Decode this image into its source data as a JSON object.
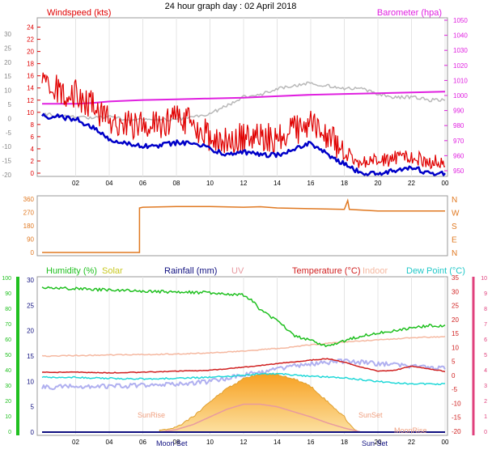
{
  "title": "24 hour graph day : 02 April 2018",
  "colors": {
    "wind": "#e00000",
    "gust_avg": "#0000c8",
    "barometer": "#e020e0",
    "grey_trace": "#b8b8b8",
    "direction": "#e07820",
    "humidity": "#20c020",
    "indoor": "#f5b8a0",
    "temperature": "#d02020",
    "dewpoint": "#20d8d8",
    "rainfall": "#101080",
    "uv": "#e89aa0",
    "solar": "#f5b040",
    "solar_edge": "#e0a030",
    "lavender": "#b0b0f0",
    "green_axis": "#20c020",
    "pink_axis": "#e0407c",
    "panel_border": "#9a9a9a",
    "grid": "#e4e4e4"
  },
  "chart_data": [
    {
      "type": "line",
      "panel": "wind-barometer",
      "left_axis_label": "Windspeed (kts)",
      "right_axis_label": "Barometer (hpa)",
      "x_ticks": [
        "02",
        "04",
        "06",
        "08",
        "10",
        "12",
        "14",
        "16",
        "18",
        "20",
        "22",
        "00"
      ],
      "outer_left_ticks": [
        "30",
        "25",
        "20",
        "15",
        "10",
        "5",
        "0",
        "-5",
        "-10",
        "-15",
        "-20"
      ],
      "left_ticks": [
        "24",
        "22",
        "20",
        "18",
        "16",
        "14",
        "12",
        "10",
        "8",
        "6",
        "4",
        "2",
        "0"
      ],
      "right_ticks": [
        "1050",
        "1040",
        "1030",
        "1020",
        "1010",
        "1000",
        "990",
        "980",
        "970",
        "960",
        "950"
      ],
      "ylim": [
        0,
        25
      ],
      "series": [
        {
          "values": [
            [
              0,
              14
            ],
            [
              0.5,
              12
            ],
            [
              1,
              13
            ],
            [
              1.5,
              11
            ],
            [
              2,
              12
            ],
            [
              2.5,
              11
            ],
            [
              3,
              10
            ],
            [
              3.5,
              9
            ],
            [
              4,
              8
            ],
            [
              4.5,
              7.5
            ],
            [
              5,
              7
            ],
            [
              6,
              7
            ],
            [
              7,
              7
            ],
            [
              8,
              8
            ],
            [
              9,
              7
            ],
            [
              10,
              5
            ],
            [
              11,
              4
            ],
            [
              12,
              5
            ],
            [
              13,
              5
            ],
            [
              14,
              4.5
            ],
            [
              15,
              6
            ],
            [
              16,
              7
            ],
            [
              17,
              5
            ],
            [
              18,
              3
            ],
            [
              19,
              1
            ],
            [
              20,
              1.5
            ],
            [
              21,
              2
            ],
            [
              22,
              2
            ],
            [
              23,
              1.5
            ],
            [
              24,
              1
            ]
          ]
        },
        {
          "values": [
            [
              0,
              9.5
            ],
            [
              0.5,
              9
            ],
            [
              1,
              9.5
            ],
            [
              1.5,
              9
            ],
            [
              2,
              9
            ],
            [
              2.5,
              8
            ],
            [
              3,
              7.5
            ],
            [
              3.5,
              6.5
            ],
            [
              4,
              5.5
            ],
            [
              4.5,
              5
            ],
            [
              5,
              5
            ],
            [
              6,
              4.5
            ],
            [
              7,
              4.5
            ],
            [
              8,
              5
            ],
            [
              9,
              5
            ],
            [
              10,
              4
            ],
            [
              11,
              3
            ],
            [
              12,
              3.5
            ],
            [
              13,
              3
            ],
            [
              14,
              3
            ],
            [
              15,
              4
            ],
            [
              16,
              5
            ],
            [
              17,
              3
            ],
            [
              18,
              1.5
            ],
            [
              19,
              0
            ],
            [
              20,
              0
            ],
            [
              21,
              0.5
            ],
            [
              22,
              1
            ],
            [
              23,
              0
            ],
            [
              24,
              0
            ]
          ]
        },
        {
          "values": [
            [
              0,
              994.5
            ],
            [
              2,
              994.5
            ],
            [
              3,
              995
            ],
            [
              4,
              996
            ],
            [
              6,
              997
            ],
            [
              8,
              997.5
            ],
            [
              10,
              998
            ],
            [
              12,
              998.5
            ],
            [
              14,
              999.5
            ],
            [
              16,
              1000.5
            ],
            [
              18,
              1001
            ],
            [
              20,
              1001.5
            ],
            [
              22,
              1002
            ],
            [
              24,
              1002.5
            ]
          ]
        },
        {
          "values": [
            [
              0,
              -1
            ],
            [
              1,
              -1.5
            ],
            [
              2,
              -2
            ],
            [
              3,
              -2.5
            ],
            [
              4,
              -2
            ],
            [
              5,
              -3
            ],
            [
              6,
              -3
            ],
            [
              7,
              -3
            ],
            [
              8,
              -3
            ],
            [
              9,
              -2
            ],
            [
              10,
              -1
            ],
            [
              11,
              2
            ],
            [
              12,
              5
            ],
            [
              13,
              6
            ],
            [
              14,
              8
            ],
            [
              15,
              9
            ],
            [
              16,
              10
            ],
            [
              17,
              9
            ],
            [
              18,
              8
            ],
            [
              19,
              8
            ],
            [
              20,
              6
            ],
            [
              21,
              5
            ],
            [
              22,
              5
            ],
            [
              23,
              4
            ],
            [
              24,
              4
            ]
          ]
        }
      ]
    },
    {
      "type": "line",
      "panel": "direction",
      "left_ticks": [
        "360",
        "270",
        "180",
        "90",
        "0"
      ],
      "right_ticks": [
        "N",
        "W",
        "S",
        "E",
        "N"
      ],
      "ylim": [
        0,
        360
      ],
      "series": [
        {
          "values": [
            [
              0,
              0
            ],
            [
              5.8,
              0
            ],
            [
              5.8,
              300
            ],
            [
              6,
              305
            ],
            [
              8,
              310
            ],
            [
              10,
              310
            ],
            [
              12,
              305
            ],
            [
              13,
              308
            ],
            [
              14,
              300
            ],
            [
              16,
              295
            ],
            [
              18,
              290
            ],
            [
              18.2,
              350
            ],
            [
              18.3,
              290
            ],
            [
              20,
              280
            ],
            [
              24,
              280
            ]
          ]
        }
      ]
    },
    {
      "type": "line",
      "panel": "climate",
      "legend": [
        "Humidity (%)",
        "Solar",
        "Rainfall (mm)",
        "UV",
        "Temperature (°C)",
        "Indoor",
        "Dew Point (°C)"
      ],
      "x_ticks": [
        "02",
        "04",
        "06",
        "08",
        "10",
        "12",
        "14",
        "16",
        "18",
        "20",
        "22",
        "00"
      ],
      "outer_left_ticks": [
        "100",
        "90",
        "80",
        "70",
        "60",
        "50",
        "40",
        "30",
        "20",
        "10",
        "0"
      ],
      "left_ticks": [
        "30",
        "25",
        "20",
        "15",
        "10",
        "5",
        "0"
      ],
      "right_ticks": [
        "35",
        "30",
        "25",
        "20",
        "15",
        "10",
        "5",
        "0",
        "-5",
        "-10",
        "-15",
        "-20"
      ],
      "outer_right_ticks": [
        "10",
        "9",
        "8",
        "7",
        "6",
        "5",
        "4",
        "3",
        "2",
        "1",
        "0"
      ],
      "annotations": [
        "Moon Set",
        "SunRise",
        "SunSet",
        "Sun Set",
        "MoonRise"
      ],
      "ylim": [
        0,
        30
      ],
      "series": [
        {
          "values": [
            [
              0,
              28.5
            ],
            [
              2,
              28.3
            ],
            [
              4,
              28
            ],
            [
              6,
              27.8
            ],
            [
              8,
              27.6
            ],
            [
              10,
              27.5
            ],
            [
              12,
              27
            ],
            [
              12.5,
              26
            ],
            [
              13,
              24
            ],
            [
              14,
              22
            ],
            [
              15,
              19
            ],
            [
              16,
              18
            ],
            [
              17,
              17
            ],
            [
              18,
              18
            ],
            [
              19,
              19
            ],
            [
              20,
              19.5
            ],
            [
              21,
              20
            ],
            [
              22,
              20.5
            ],
            [
              23,
              21
            ],
            [
              24,
              21
            ]
          ]
        },
        {
          "values": [
            [
              0,
              15
            ],
            [
              4,
              15.2
            ],
            [
              8,
              15.4
            ],
            [
              10,
              15.6
            ],
            [
              12,
              16
            ],
            [
              14,
              16.5
            ],
            [
              16,
              17.2
            ],
            [
              18,
              17.8
            ],
            [
              20,
              18.2
            ],
            [
              22,
              18.6
            ],
            [
              24,
              18.8
            ]
          ]
        },
        {
          "values": [
            [
              0,
              11.8
            ],
            [
              2,
              11.8
            ],
            [
              4,
              11.7
            ],
            [
              6,
              11.8
            ],
            [
              8,
              12
            ],
            [
              10,
              12.2
            ],
            [
              12,
              12.8
            ],
            [
              14,
              13.5
            ],
            [
              16,
              14.2
            ],
            [
              17,
              14.5
            ],
            [
              18,
              13.8
            ],
            [
              19,
              12.8
            ],
            [
              20,
              12
            ],
            [
              21,
              12.2
            ],
            [
              22,
              13
            ],
            [
              23,
              12.5
            ],
            [
              24,
              12
            ]
          ]
        },
        {
          "values": [
            [
              0,
              10.8
            ],
            [
              2,
              10.8
            ],
            [
              4,
              10.6
            ],
            [
              6,
              10.5
            ],
            [
              8,
              10.6
            ],
            [
              10,
              10.8
            ],
            [
              12,
              11.2
            ],
            [
              13,
              11.5
            ],
            [
              14,
              11.5
            ],
            [
              16,
              11
            ],
            [
              18,
              10.7
            ],
            [
              20,
              10
            ],
            [
              22,
              9.5
            ],
            [
              24,
              9.5
            ]
          ]
        },
        {
          "values": [
            [
              0,
              8.8
            ],
            [
              2,
              9
            ],
            [
              4,
              9
            ],
            [
              6,
              9.2
            ],
            [
              8,
              9.5
            ],
            [
              10,
              10
            ],
            [
              12,
              11.2
            ],
            [
              14,
              12.5
            ],
            [
              16,
              13.5
            ],
            [
              18,
              14
            ],
            [
              20,
              13.5
            ],
            [
              22,
              13
            ],
            [
              24,
              12.5
            ]
          ]
        },
        {
          "values": [
            [
              7,
              0.3
            ],
            [
              8,
              1
            ],
            [
              9,
              3
            ],
            [
              10,
              6
            ],
            [
              11,
              8.5
            ],
            [
              12,
              10.5
            ],
            [
              13,
              11.5
            ],
            [
              14,
              11.5
            ],
            [
              15,
              10.5
            ],
            [
              16,
              9
            ],
            [
              17,
              6
            ],
            [
              18,
              3
            ],
            [
              18.5,
              0.8
            ],
            [
              19,
              0
            ]
          ]
        },
        {
          "values": [
            [
              7,
              0
            ],
            [
              8,
              0.5
            ],
            [
              9,
              1.5
            ],
            [
              10,
              3
            ],
            [
              11,
              4.5
            ],
            [
              12,
              5.5
            ],
            [
              13,
              5.5
            ],
            [
              14,
              5
            ],
            [
              15,
              4
            ],
            [
              16,
              3
            ],
            [
              17,
              1.8
            ],
            [
              18,
              0.8
            ],
            [
              19,
              0
            ]
          ]
        }
      ]
    }
  ]
}
